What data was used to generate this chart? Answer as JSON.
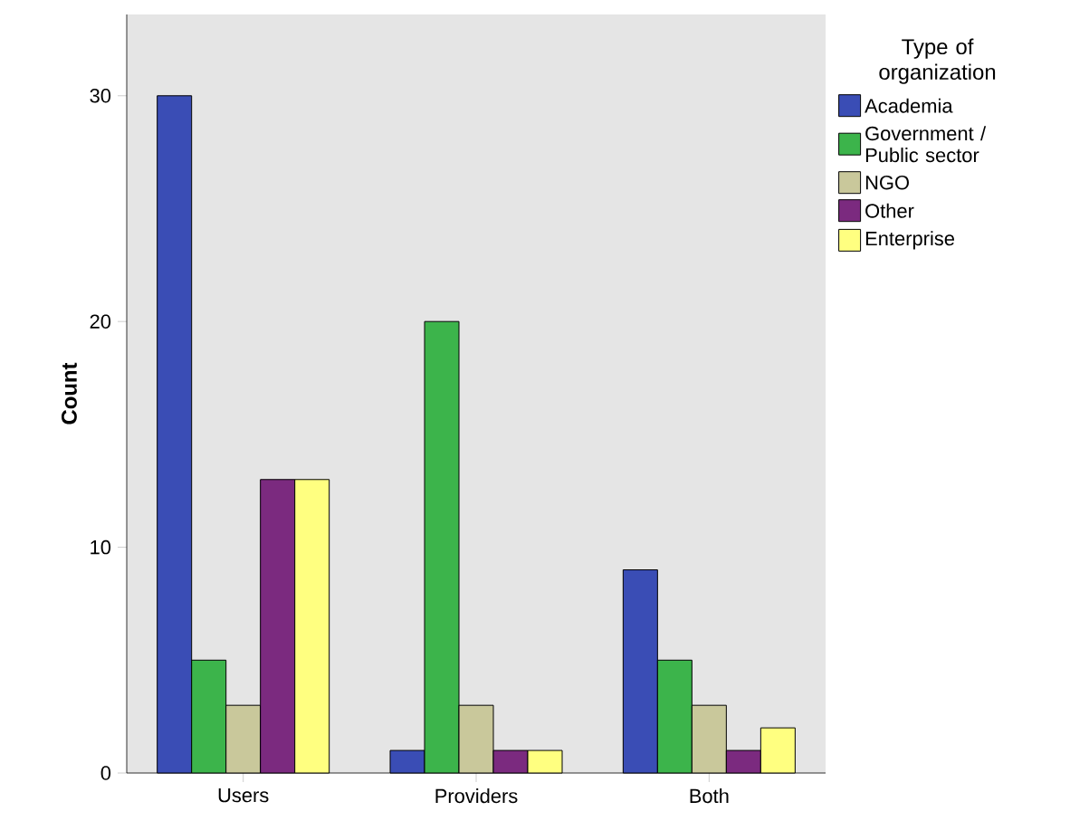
{
  "chart_data": {
    "type": "bar",
    "ylabel": "Count",
    "legend_title": "Type of organization",
    "categories": [
      "Users",
      "Providers",
      "Both"
    ],
    "series": [
      {
        "name": "Academia",
        "color": "#3a4db5",
        "values": [
          30,
          1,
          9
        ]
      },
      {
        "name": "Government / Public sector",
        "color": "#3cb44b",
        "values": [
          5,
          20,
          5
        ]
      },
      {
        "name": "NGO",
        "color": "#c9c89b",
        "values": [
          3,
          3,
          3
        ]
      },
      {
        "name": "Other",
        "color": "#7b2a7f",
        "values": [
          13,
          1,
          1
        ]
      },
      {
        "name": "Enterprise",
        "color": "#ffff80",
        "values": [
          13,
          1,
          2
        ]
      }
    ],
    "ylim": [
      0,
      33.6
    ],
    "yticks": [
      0,
      10,
      20,
      30
    ],
    "grid": false,
    "legend": "right"
  }
}
